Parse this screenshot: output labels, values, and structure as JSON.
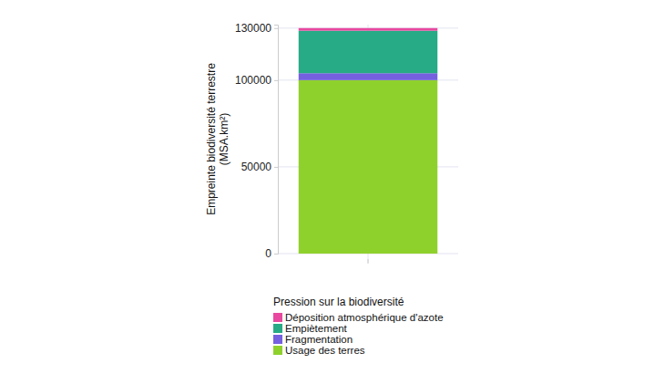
{
  "chart_data": {
    "type": "bar",
    "stacked": true,
    "ylabel": "Empreinte biodiversité terrestre\n(MSA.km²)",
    "legend_title": "Pression sur la biodiversité",
    "legend": "bottom",
    "categories": [
      null
    ],
    "series": [
      {
        "name": "Usage des terres",
        "color": "#8fd12c",
        "values": [
          100000
        ]
      },
      {
        "name": "Fragmentation",
        "color": "#7560e0",
        "values": [
          4000
        ]
      },
      {
        "name": "Empiètement",
        "color": "#27ab86",
        "values": [
          24500
        ]
      },
      {
        "name": "Déposition atmosphérique d'azote",
        "color": "#e8489f",
        "values": [
          1500
        ]
      }
    ],
    "ylim": [
      0,
      132000
    ],
    "yticks": [
      0,
      50000,
      100000,
      130000
    ],
    "grid": true
  }
}
